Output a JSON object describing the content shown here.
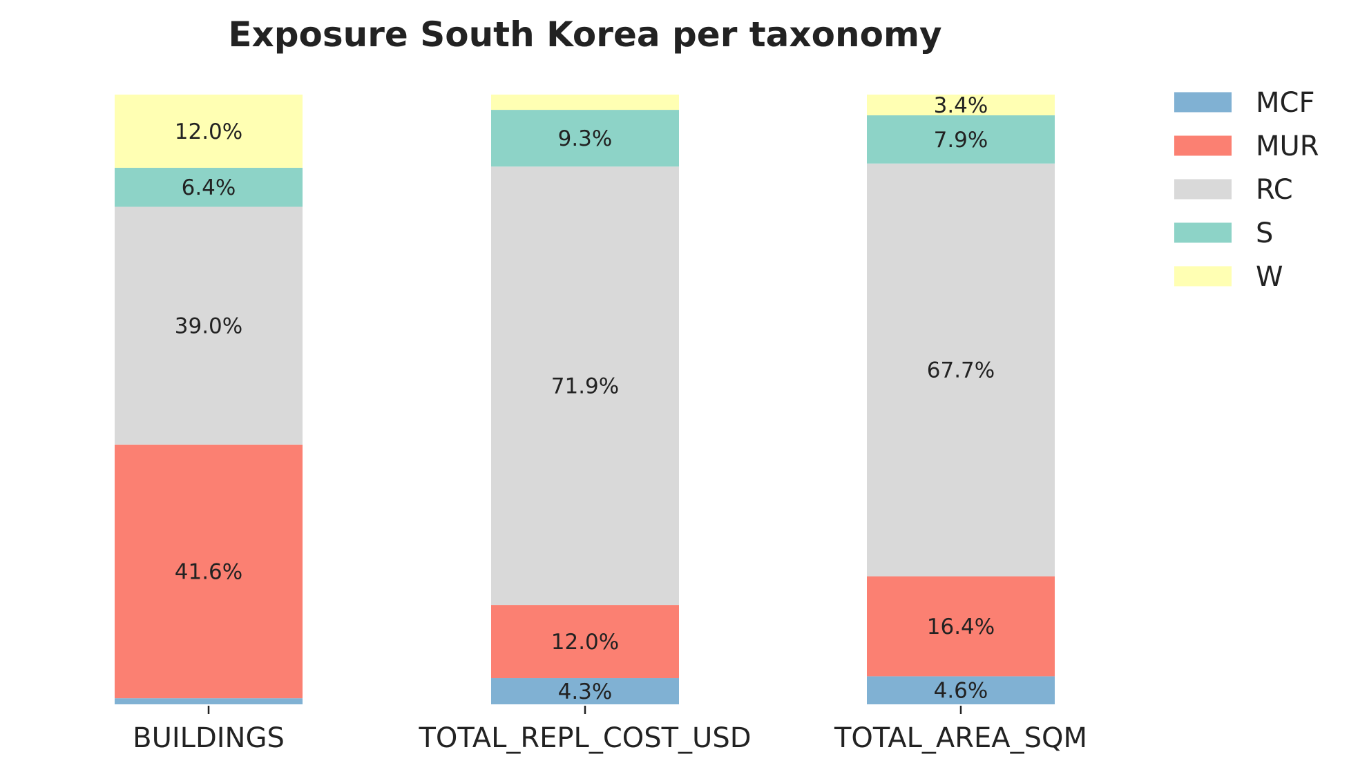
{
  "chart_data": {
    "type": "bar",
    "stacked": true,
    "normalized_percent": true,
    "title": "Exposure South Korea per taxonomy",
    "xlabel": "",
    "ylabel": "",
    "ylim": [
      0,
      100
    ],
    "grid": false,
    "legend_position": "top-right",
    "categories": [
      "BUILDINGS",
      "TOTAL_REPL_COST_USD",
      "TOTAL_AREA_SQM"
    ],
    "series": [
      {
        "name": "MCF",
        "color": "#80b1d3",
        "values": [
          1.0,
          4.3,
          4.6
        ],
        "labels": [
          "",
          "4.3%",
          "4.6%"
        ]
      },
      {
        "name": "MUR",
        "color": "#fb8072",
        "values": [
          41.6,
          12.0,
          16.4
        ],
        "labels": [
          "41.6%",
          "12.0%",
          "16.4%"
        ]
      },
      {
        "name": "RC",
        "color": "#d9d9d9",
        "values": [
          39.0,
          71.9,
          67.7
        ],
        "labels": [
          "39.0%",
          "71.9%",
          "67.7%"
        ]
      },
      {
        "name": "S",
        "color": "#8dd3c7",
        "values": [
          6.4,
          9.3,
          7.9
        ],
        "labels": [
          "6.4%",
          "9.3%",
          "7.9%"
        ]
      },
      {
        "name": "W",
        "color": "#ffffb3",
        "values": [
          12.0,
          2.5,
          3.4
        ],
        "labels": [
          "12.0%",
          "",
          "3.4%"
        ]
      }
    ]
  }
}
